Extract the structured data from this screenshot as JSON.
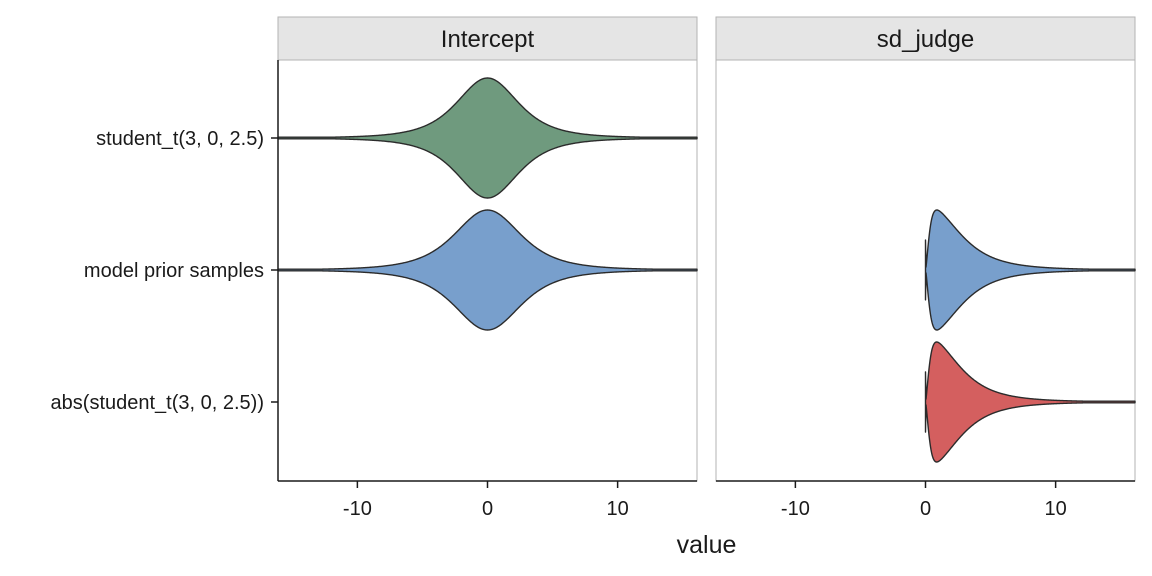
{
  "chart_data": {
    "type": "violin",
    "xlabel": "value",
    "xlim": [
      -16.1,
      16.1
    ],
    "x_ticks": [
      -10,
      0,
      10
    ],
    "x_tick_labels": [
      "-10",
      "0",
      "10"
    ],
    "y_categories": [
      "student_t(3, 0, 2.5)",
      "model prior samples",
      "abs(student_t(3, 0, 2.5))"
    ],
    "grid": false,
    "panels": [
      {
        "facet": "Intercept",
        "violins": [
          {
            "category": "student_t(3, 0, 2.5)",
            "color": "#6f9a7e",
            "distribution": "symmetric",
            "center": 0,
            "scale": 2.5
          },
          {
            "category": "model prior samples",
            "color": "#789fcc",
            "distribution": "symmetric",
            "center": 0,
            "scale": 2.7
          }
        ]
      },
      {
        "facet": "sd_judge",
        "violins": [
          {
            "category": "model prior samples",
            "color": "#789fcc",
            "distribution": "half",
            "lower_bound": 0,
            "scale": 2.6
          },
          {
            "category": "abs(student_t(3, 0, 2.5))",
            "color": "#d45f5f",
            "distribution": "half",
            "lower_bound": 0,
            "scale": 2.5
          }
        ]
      }
    ]
  }
}
